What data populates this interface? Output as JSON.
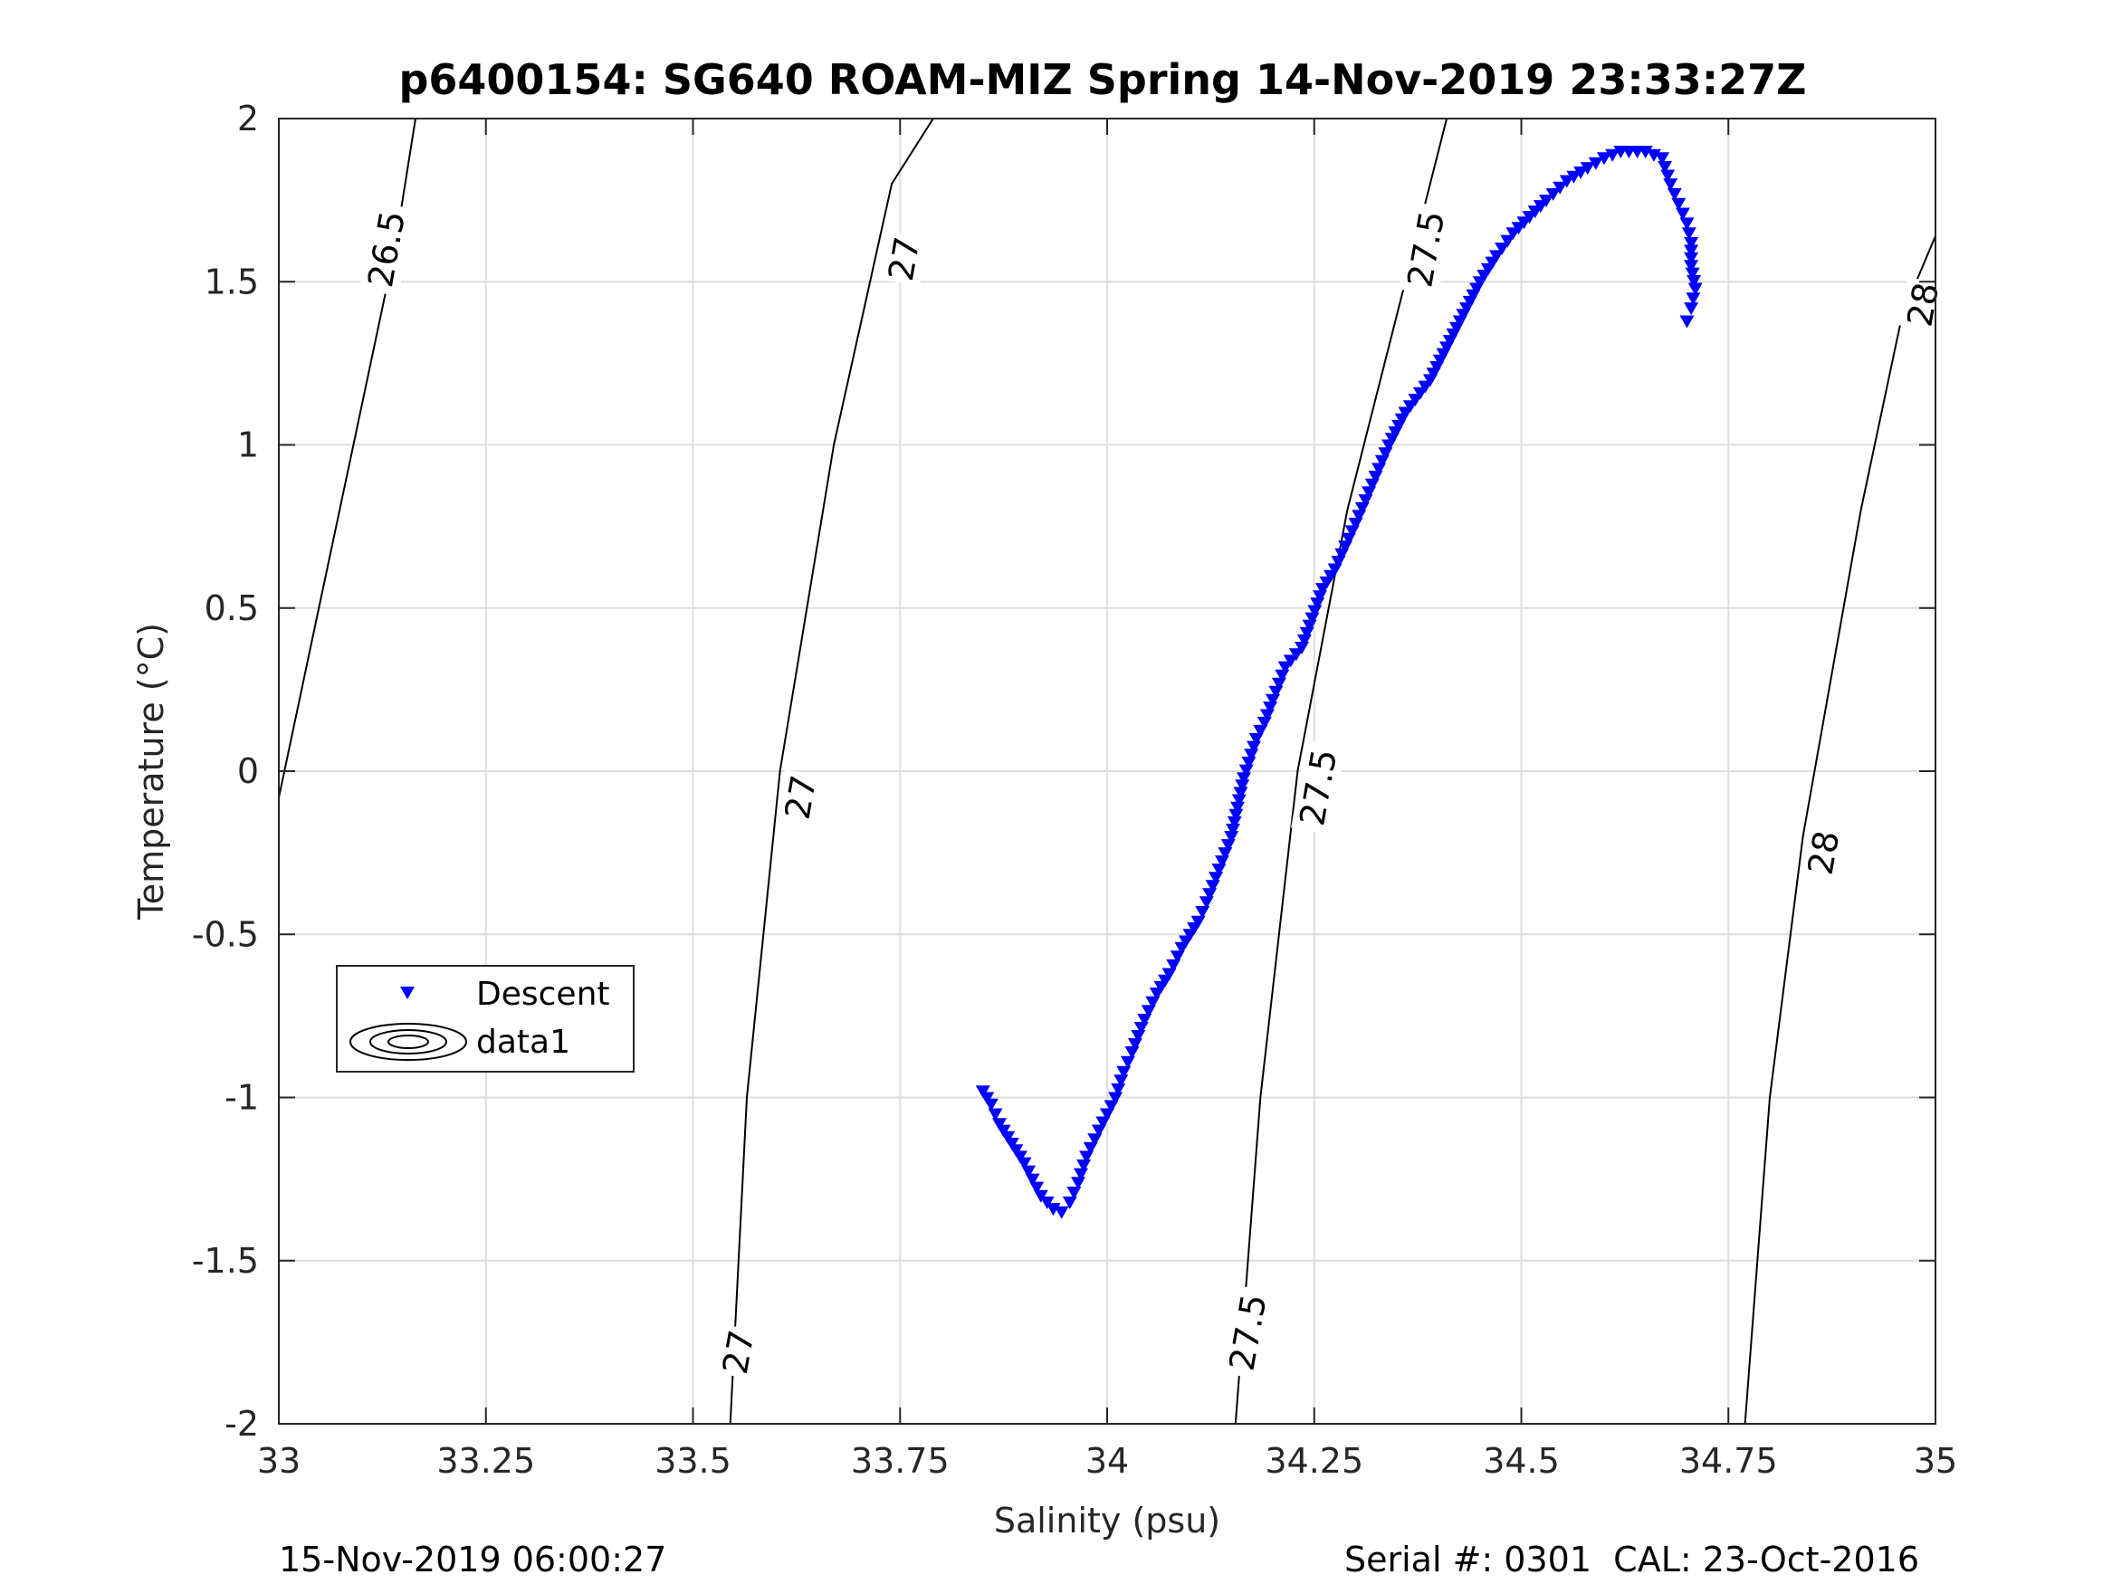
{
  "chart_data": {
    "type": "scatter",
    "title": "p6400154: SG640 ROAM-MIZ Spring 14-Nov-2019 23:33:27Z",
    "xlabel": "Salinity (psu)",
    "ylabel": "Temperature (°C)",
    "xlim": [
      33,
      35
    ],
    "ylim": [
      -2,
      2
    ],
    "x_ticks": [
      "33",
      "33.25",
      "33.5",
      "33.75",
      "34",
      "34.25",
      "34.5",
      "34.75",
      "35"
    ],
    "y_ticks": [
      "-2",
      "-1.5",
      "-1",
      "-0.5",
      "0",
      "0.5",
      "1",
      "1.5",
      "2"
    ],
    "grid": true,
    "legend": {
      "placement": "left",
      "entries": [
        "Descent",
        "data1"
      ]
    },
    "series": [
      {
        "name": "Descent",
        "marker": "triangle-down",
        "color": "#0000ff",
        "points": [
          [
            33.85,
            -0.98
          ],
          [
            33.86,
            -1.02
          ],
          [
            33.87,
            -1.08
          ],
          [
            33.88,
            -1.12
          ],
          [
            33.89,
            -1.16
          ],
          [
            33.9,
            -1.2
          ],
          [
            33.91,
            -1.25
          ],
          [
            33.92,
            -1.3
          ],
          [
            33.935,
            -1.34
          ],
          [
            33.945,
            -1.35
          ],
          [
            33.955,
            -1.32
          ],
          [
            33.965,
            -1.26
          ],
          [
            33.975,
            -1.18
          ],
          [
            33.99,
            -1.1
          ],
          [
            34.0,
            -1.05
          ],
          [
            34.01,
            -1.0
          ],
          [
            34.02,
            -0.92
          ],
          [
            34.03,
            -0.86
          ],
          [
            34.045,
            -0.76
          ],
          [
            34.06,
            -0.68
          ],
          [
            34.075,
            -0.62
          ],
          [
            34.09,
            -0.54
          ],
          [
            34.11,
            -0.46
          ],
          [
            34.12,
            -0.4
          ],
          [
            34.135,
            -0.3
          ],
          [
            34.15,
            -0.2
          ],
          [
            34.165,
            -0.02
          ],
          [
            34.18,
            0.1
          ],
          [
            34.19,
            0.15
          ],
          [
            34.2,
            0.22
          ],
          [
            34.215,
            0.32
          ],
          [
            34.235,
            0.38
          ],
          [
            34.26,
            0.56
          ],
          [
            34.275,
            0.62
          ],
          [
            34.3,
            0.76
          ],
          [
            34.32,
            0.88
          ],
          [
            34.34,
            1.0
          ],
          [
            34.36,
            1.1
          ],
          [
            34.39,
            1.2
          ],
          [
            34.41,
            1.3
          ],
          [
            34.43,
            1.4
          ],
          [
            34.45,
            1.5
          ],
          [
            34.47,
            1.58
          ],
          [
            34.49,
            1.65
          ],
          [
            34.51,
            1.7
          ],
          [
            34.53,
            1.75
          ],
          [
            34.555,
            1.81
          ],
          [
            34.58,
            1.85
          ],
          [
            34.6,
            1.88
          ],
          [
            34.62,
            1.9
          ],
          [
            34.65,
            1.9
          ],
          [
            34.67,
            1.88
          ],
          [
            34.68,
            1.8
          ],
          [
            34.69,
            1.74
          ],
          [
            34.7,
            1.68
          ],
          [
            34.705,
            1.62
          ],
          [
            34.705,
            1.55
          ],
          [
            34.71,
            1.48
          ],
          [
            34.705,
            1.42
          ],
          [
            34.7,
            1.38
          ]
        ]
      }
    ],
    "isopycnals": [
      {
        "label": "26.5",
        "points": [
          [
            32.99,
            -0.2
          ],
          [
            33.04,
            0.4
          ],
          [
            33.09,
            1.0
          ],
          [
            33.14,
            1.6
          ],
          [
            33.165,
            2.0
          ]
        ]
      },
      {
        "label": "27",
        "points": [
          [
            33.545,
            -2.0
          ],
          [
            33.565,
            -1.0
          ],
          [
            33.605,
            0.0
          ],
          [
            33.67,
            1.0
          ],
          [
            33.74,
            1.8
          ],
          [
            33.79,
            2.0
          ]
        ]
      },
      {
        "label": "27.5",
        "points": [
          [
            34.155,
            -2.0
          ],
          [
            34.185,
            -1.0
          ],
          [
            34.23,
            0.0
          ],
          [
            34.29,
            0.8
          ],
          [
            34.37,
            1.6
          ],
          [
            34.41,
            2.0
          ]
        ]
      },
      {
        "label": "28",
        "points": [
          [
            34.77,
            -2.0
          ],
          [
            34.8,
            -1.0
          ],
          [
            34.84,
            -0.2
          ],
          [
            34.91,
            0.8
          ],
          [
            34.96,
            1.4
          ],
          [
            35.0,
            1.64
          ]
        ]
      }
    ],
    "isopycnal_label_positions": [
      {
        "label": "26.5",
        "at": [
          33.13,
          1.6
        ]
      },
      {
        "label": "27",
        "at": [
          33.755,
          1.57
        ]
      },
      {
        "label": "27",
        "at": [
          33.63,
          -0.08
        ]
      },
      {
        "label": "27",
        "at": [
          33.555,
          -1.78
        ]
      },
      {
        "label": "27.5",
        "at": [
          34.385,
          1.6
        ]
      },
      {
        "label": "27.5",
        "at": [
          34.255,
          -0.05
        ]
      },
      {
        "label": "27.5",
        "at": [
          34.17,
          -1.72
        ]
      },
      {
        "label": "28",
        "at": [
          34.985,
          1.43
        ]
      },
      {
        "label": "28",
        "at": [
          34.865,
          -0.25
        ]
      }
    ]
  },
  "footer": {
    "left": "15-Nov-2019 06:00:27",
    "right": "Serial #: 0301  CAL: 23-Oct-2016"
  }
}
